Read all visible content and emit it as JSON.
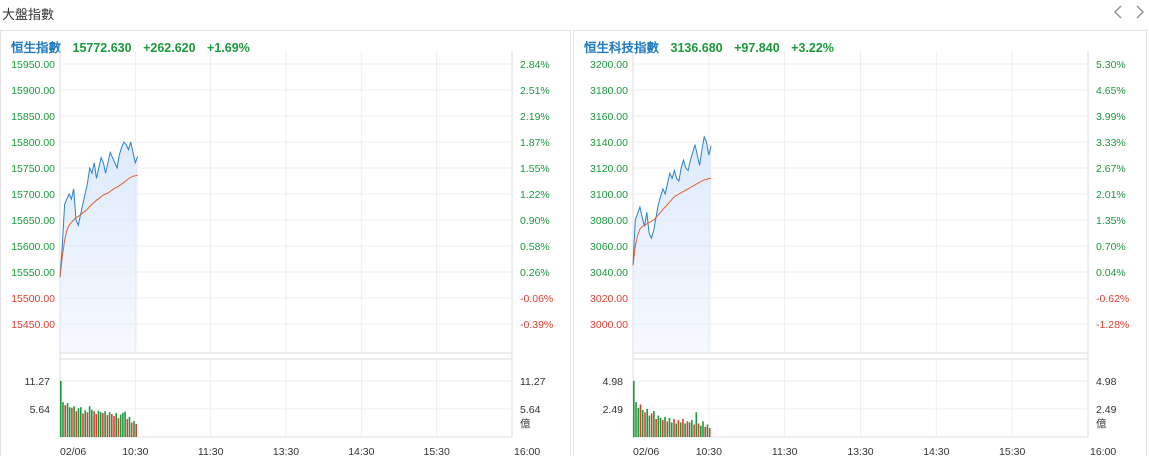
{
  "section_title": "大盤指數",
  "nav": {
    "prev_icon": "chevron-left-icon",
    "next_icon": "chevron-right-icon"
  },
  "colors": {
    "up": "#1a9a3b",
    "down": "#e03c31",
    "name": "#1f7ac0",
    "price_line": "#2a7fd0",
    "avg_line": "#e06030",
    "area_fill": "#dce9fb"
  },
  "panels": [
    {
      "name": "恒生指數",
      "price": "15772.630",
      "change": "+262.620",
      "change_pct": "+1.69%",
      "price_ticks": [
        "15950.00",
        "15900.00",
        "15850.00",
        "15800.00",
        "15750.00",
        "15700.00",
        "15650.00",
        "15600.00",
        "15550.00",
        "15500.00",
        "15450.00"
      ],
      "pct_ticks": [
        "2.84%",
        "2.51%",
        "2.19%",
        "1.87%",
        "1.55%",
        "1.22%",
        "0.90%",
        "0.58%",
        "0.26%",
        "-0.06%",
        "-0.39%"
      ],
      "tick_colors": [
        "up",
        "up",
        "up",
        "up",
        "up",
        "up",
        "up",
        "up",
        "up",
        "down",
        "down"
      ],
      "volume_ticks": [
        "11.27",
        "5.64"
      ],
      "volume_unit": "億",
      "time_labels": [
        "02/06",
        "10:30",
        "11:30",
        "13:30",
        "14:30",
        "15:30",
        "16:00"
      ],
      "price_range": [
        15425,
        15950
      ],
      "volume_max": 11.27,
      "price_series": [
        15540,
        15600,
        15680,
        15690,
        15700,
        15690,
        15710,
        15650,
        15640,
        15660,
        15680,
        15700,
        15720,
        15750,
        15740,
        15760,
        15730,
        15750,
        15770,
        15760,
        15740,
        15760,
        15780,
        15770,
        15760,
        15750,
        15775,
        15790,
        15800,
        15795,
        15785,
        15800,
        15780,
        15760,
        15772
      ],
      "avg_series": [
        15540,
        15580,
        15610,
        15630,
        15640,
        15645,
        15650,
        15655,
        15657,
        15660,
        15664,
        15667,
        15671,
        15676,
        15680,
        15684,
        15688,
        15691,
        15695,
        15698,
        15700,
        15702,
        15705,
        15708,
        15711,
        15713,
        15716,
        15719,
        15722,
        15726,
        15729,
        15732,
        15734,
        15735,
        15736
      ],
      "volume_series": [
        11.3,
        7.0,
        6.4,
        6.8,
        6.0,
        5.9,
        6.2,
        5.2,
        5.8,
        6.0,
        4.7,
        5.4,
        5.0,
        6.2,
        5.5,
        5.2,
        4.6,
        5.3,
        5.0,
        4.8,
        5.2,
        4.4,
        5.0,
        4.6,
        4.2,
        4.8,
        3.8,
        4.5,
        4.9,
        5.1,
        3.6,
        4.0,
        2.9,
        3.2,
        2.6
      ],
      "volume_up": [
        1,
        1,
        0,
        1,
        1,
        0,
        1,
        0,
        1,
        1,
        0,
        1,
        0,
        1,
        1,
        0,
        0,
        1,
        1,
        0,
        1,
        0,
        1,
        0,
        0,
        1,
        0,
        1,
        1,
        1,
        0,
        1,
        0,
        1,
        0
      ]
    },
    {
      "name": "恒生科技指數",
      "price": "3136.680",
      "change": "+97.840",
      "change_pct": "+3.22%",
      "price_ticks": [
        "3200.00",
        "3180.00",
        "3160.00",
        "3140.00",
        "3120.00",
        "3100.00",
        "3080.00",
        "3060.00",
        "3040.00",
        "3020.00",
        "3000.00"
      ],
      "pct_ticks": [
        "5.30%",
        "4.65%",
        "3.99%",
        "3.33%",
        "2.67%",
        "2.01%",
        "1.35%",
        "0.70%",
        "0.04%",
        "-0.62%",
        "-1.28%"
      ],
      "tick_colors": [
        "up",
        "up",
        "up",
        "up",
        "up",
        "up",
        "up",
        "up",
        "up",
        "down",
        "down"
      ],
      "volume_ticks": [
        "4.98",
        "2.49"
      ],
      "volume_unit": "億",
      "time_labels": [
        "02/06",
        "10:30",
        "11:30",
        "13:30",
        "14:30",
        "15:30",
        "16:00"
      ],
      "price_range": [
        2990,
        3200
      ],
      "volume_max": 4.98,
      "price_series": [
        3045,
        3080,
        3085,
        3090,
        3082,
        3075,
        3086,
        3070,
        3066,
        3072,
        3082,
        3092,
        3098,
        3104,
        3100,
        3108,
        3116,
        3112,
        3118,
        3112,
        3110,
        3120,
        3126,
        3120,
        3118,
        3126,
        3132,
        3138,
        3130,
        3122,
        3134,
        3144,
        3140,
        3130,
        3137
      ],
      "avg_series": [
        3045,
        3060,
        3068,
        3073,
        3075,
        3076,
        3077,
        3078,
        3079,
        3080,
        3082,
        3084,
        3086,
        3088,
        3090,
        3092,
        3094,
        3096,
        3098,
        3099,
        3100,
        3101,
        3102,
        3103,
        3104,
        3105,
        3106,
        3107,
        3108,
        3109,
        3110,
        3111,
        3111,
        3112,
        3112
      ],
      "volume_series": [
        5.0,
        3.1,
        2.6,
        2.9,
        2.4,
        2.2,
        2.5,
        1.9,
        2.1,
        2.3,
        1.6,
        1.9,
        1.7,
        1.5,
        1.8,
        1.4,
        1.7,
        1.3,
        1.6,
        1.2,
        1.5,
        1.3,
        1.6,
        1.2,
        1.4,
        1.3,
        1.5,
        1.1,
        2.2,
        1.2,
        1.0,
        1.4,
        0.9,
        1.1,
        0.8
      ],
      "volume_up": [
        1,
        1,
        1,
        0,
        1,
        0,
        1,
        1,
        0,
        1,
        0,
        1,
        1,
        0,
        1,
        0,
        1,
        1,
        0,
        1,
        0,
        1,
        0,
        1,
        0,
        1,
        1,
        0,
        1,
        0,
        1,
        1,
        0,
        1,
        0
      ]
    }
  ]
}
